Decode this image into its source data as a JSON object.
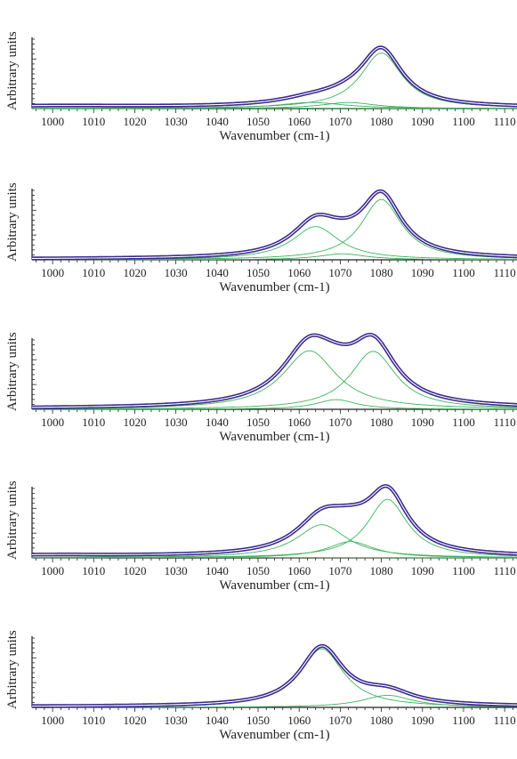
{
  "chart_data": [
    {
      "type": "line",
      "xlabel": "Wavenumber (cm-1)",
      "ylabel": "Arbitrary units",
      "xlim": [
        995,
        1113
      ],
      "ylim": [
        0,
        1.15
      ],
      "xticks": [
        "1000",
        "1010",
        "1020",
        "1030",
        "1040",
        "1050",
        "1060",
        "1070",
        "1080",
        "1090",
        "1100",
        "1110"
      ],
      "grid": false,
      "components": [
        {
          "center": 1080,
          "height": 0.92,
          "width": 6.2
        },
        {
          "center": 1072,
          "height": 0.1,
          "width": 8
        },
        {
          "center": 1063,
          "height": 0.1,
          "width": 10
        },
        {
          "center": 1000,
          "height": 0.03,
          "width": 30
        }
      ]
    },
    {
      "type": "line",
      "xlabel": "Wavenumber (cm-1)",
      "ylabel": "Arbitrary units",
      "xlim": [
        995,
        1113
      ],
      "ylim": [
        0,
        1.15
      ],
      "xticks": [
        "1000",
        "1010",
        "1020",
        "1030",
        "1040",
        "1050",
        "1060",
        "1070",
        "1080",
        "1090",
        "1100",
        "1110"
      ],
      "grid": false,
      "components": [
        {
          "center": 1080,
          "height": 1.0,
          "width": 6.0
        },
        {
          "center": 1064,
          "height": 0.55,
          "width": 7.0
        },
        {
          "center": 1070.5,
          "height": 0.1,
          "width": 7.0
        }
      ]
    },
    {
      "type": "line",
      "xlabel": "Wavenumber (cm-1)",
      "ylabel": "Arbitrary units",
      "xlim": [
        995,
        1113
      ],
      "ylim": [
        0,
        1.15
      ],
      "xticks": [
        "1000",
        "1010",
        "1020",
        "1030",
        "1040",
        "1050",
        "1060",
        "1070",
        "1080",
        "1090",
        "1100",
        "1110"
      ],
      "grid": false,
      "components": [
        {
          "center": 1062.5,
          "height": 0.97,
          "width": 8.0
        },
        {
          "center": 1078,
          "height": 0.96,
          "width": 6.8
        },
        {
          "center": 1069,
          "height": 0.16,
          "width": 6.0
        }
      ]
    },
    {
      "type": "line",
      "xlabel": "Wavenumber (cm-1)",
      "ylabel": "Arbitrary units",
      "xlim": [
        995,
        1113
      ],
      "ylim": [
        0,
        1.15
      ],
      "xticks": [
        "1000",
        "1010",
        "1020",
        "1030",
        "1040",
        "1050",
        "1060",
        "1070",
        "1080",
        "1090",
        "1100",
        "1110"
      ],
      "grid": false,
      "components": [
        {
          "center": 1081.5,
          "height": 0.97,
          "width": 6.0
        },
        {
          "center": 1065.5,
          "height": 0.55,
          "width": 7.5
        },
        {
          "center": 1072.5,
          "height": 0.27,
          "width": 7.0
        },
        {
          "center": 998,
          "height": 0.03,
          "width": 25
        }
      ]
    },
    {
      "type": "line",
      "xlabel": "Wavenumber (cm-1)",
      "ylabel": "Arbitrary units",
      "xlim": [
        995,
        1113
      ],
      "ylim": [
        0,
        1.15
      ],
      "xticks": [
        "1000",
        "1010",
        "1020",
        "1030",
        "1040",
        "1050",
        "1060",
        "1070",
        "1080",
        "1090",
        "1100",
        "1110"
      ],
      "grid": false,
      "components": [
        {
          "center": 1065.5,
          "height": 0.97,
          "width": 6.5
        },
        {
          "center": 1081.5,
          "height": 0.2,
          "width": 7.5
        }
      ]
    }
  ],
  "colors": {
    "envelope": "#3a2a8c",
    "envelope_core": "#ffffff",
    "component": "#3fb35c",
    "axis": "#222222"
  }
}
